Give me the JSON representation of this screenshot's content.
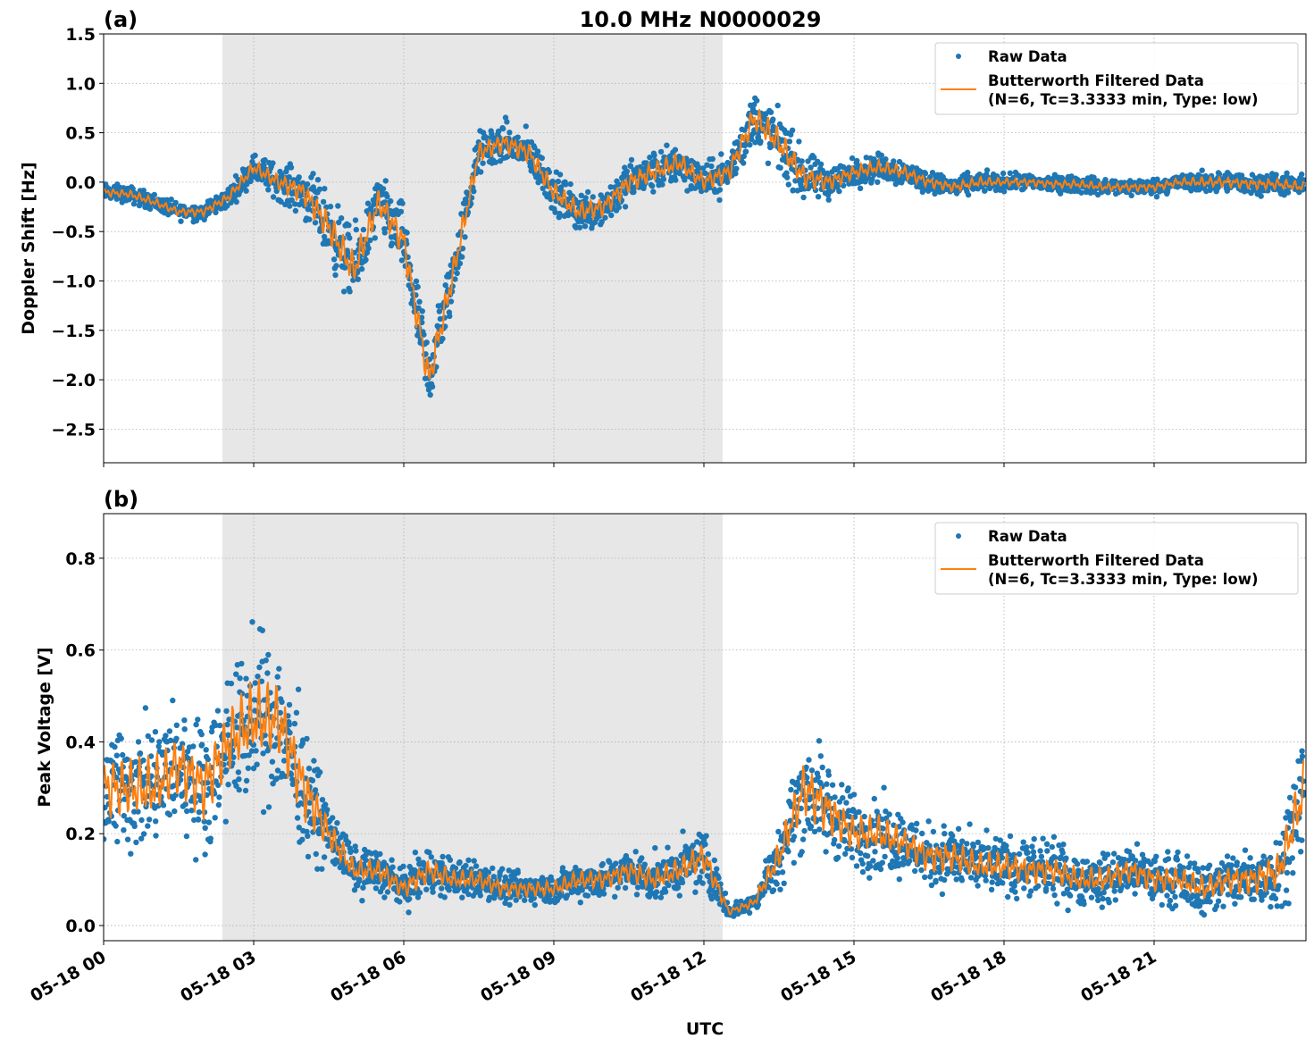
{
  "title": "10.0 MHz N0000029",
  "xlabel": "UTC",
  "colors": {
    "raw": "#1f77b4",
    "filtered": "#ff7f0e",
    "shade": "#e7e7e7",
    "grid": "#b0b0b0"
  },
  "chart_data": [
    {
      "type": "scatter+line",
      "panel_label": "(a)",
      "ylabel": "Doppler Shift [Hz]",
      "xlim_hours": [
        0,
        24
      ],
      "ylim": [
        -2.84,
        1.5
      ],
      "x_ticks": [
        "05-18 00",
        "05-18 03",
        "05-18 06",
        "05-18 09",
        "05-18 12",
        "05-18 15",
        "05-18 18",
        "05-18 21"
      ],
      "x_tick_hours": [
        0,
        3,
        6,
        9,
        12,
        15,
        18,
        21
      ],
      "y_ticks": [
        1.5,
        1.0,
        0.5,
        0.0,
        -0.5,
        -1.0,
        -1.5,
        -2.0,
        -2.5
      ],
      "y_tick_labels": [
        "1.5",
        "1.0",
        "0.5",
        "0.0",
        "−0.5",
        "−1.0",
        "−1.5",
        "−2.0",
        "−2.5"
      ],
      "grid": true,
      "shaded_interval_hours": [
        2.375,
        12.375
      ],
      "legend": {
        "position": "top-right",
        "entries": [
          "Raw Data",
          "Butterworth Filtered Data",
          "(N=6, Tc=3.3333 min, Type: low)"
        ]
      },
      "sample_hours_step": 0.5,
      "filtered": [
        -0.1,
        -0.12,
        -0.2,
        -0.3,
        -0.3,
        -0.15,
        0.15,
        0.0,
        -0.1,
        -0.45,
        -0.9,
        -0.2,
        -0.6,
        -2.0,
        -0.9,
        0.3,
        0.4,
        0.3,
        -0.1,
        -0.3,
        -0.25,
        0.0,
        0.1,
        0.2,
        0.0,
        0.1,
        0.65,
        0.4,
        0.05,
        0.0,
        0.1,
        0.15,
        0.1,
        0.0,
        -0.05,
        0.0,
        0.0,
        0.0,
        -0.02,
        -0.02,
        -0.05,
        -0.05,
        -0.05,
        0.0,
        0.0,
        0.0,
        -0.02,
        -0.02,
        -0.05
      ],
      "raw_spread": [
        0.12,
        0.12,
        0.12,
        0.12,
        0.12,
        0.15,
        0.2,
        0.25,
        0.35,
        0.5,
        0.55,
        0.4,
        0.5,
        0.5,
        0.45,
        0.3,
        0.3,
        0.3,
        0.3,
        0.3,
        0.3,
        0.3,
        0.3,
        0.3,
        0.25,
        0.3,
        0.4,
        0.45,
        0.35,
        0.25,
        0.2,
        0.2,
        0.2,
        0.15,
        0.15,
        0.15,
        0.12,
        0.12,
        0.12,
        0.12,
        0.12,
        0.12,
        0.12,
        0.12,
        0.15,
        0.15,
        0.15,
        0.15,
        0.15
      ]
    },
    {
      "type": "scatter+line",
      "panel_label": "(b)",
      "ylabel": "Peak Voltage [V]",
      "xlim_hours": [
        0,
        24
      ],
      "ylim": [
        -0.033,
        0.897
      ],
      "x_ticks": [
        "05-18 00",
        "05-18 03",
        "05-18 06",
        "05-18 09",
        "05-18 12",
        "05-18 15",
        "05-18 18",
        "05-18 21"
      ],
      "x_tick_hours": [
        0,
        3,
        6,
        9,
        12,
        15,
        18,
        21
      ],
      "y_ticks": [
        0.8,
        0.6,
        0.4,
        0.2,
        0.0
      ],
      "y_tick_labels": [
        "0.8",
        "0.6",
        "0.4",
        "0.2",
        "0.0"
      ],
      "grid": true,
      "shaded_interval_hours": [
        2.375,
        12.375
      ],
      "legend": {
        "position": "top-right",
        "entries": [
          "Raw Data",
          "Butterworth Filtered Data",
          "(N=6, Tc=3.3333 min, Type: low)"
        ]
      },
      "sample_hours_step": 0.5,
      "filtered": [
        0.3,
        0.3,
        0.3,
        0.35,
        0.3,
        0.4,
        0.45,
        0.45,
        0.3,
        0.2,
        0.12,
        0.12,
        0.08,
        0.12,
        0.1,
        0.1,
        0.08,
        0.08,
        0.08,
        0.1,
        0.1,
        0.12,
        0.1,
        0.12,
        0.15,
        0.03,
        0.05,
        0.15,
        0.3,
        0.25,
        0.2,
        0.2,
        0.18,
        0.15,
        0.15,
        0.13,
        0.13,
        0.12,
        0.12,
        0.1,
        0.1,
        0.12,
        0.1,
        0.1,
        0.08,
        0.1,
        0.1,
        0.12,
        0.3
      ],
      "raw_spread": [
        0.2,
        0.2,
        0.2,
        0.2,
        0.2,
        0.22,
        0.25,
        0.25,
        0.2,
        0.1,
        0.07,
        0.07,
        0.06,
        0.08,
        0.06,
        0.06,
        0.05,
        0.05,
        0.05,
        0.06,
        0.06,
        0.07,
        0.07,
        0.08,
        0.1,
        0.02,
        0.03,
        0.1,
        0.18,
        0.15,
        0.12,
        0.12,
        0.1,
        0.1,
        0.1,
        0.09,
        0.09,
        0.09,
        0.09,
        0.08,
        0.08,
        0.08,
        0.08,
        0.08,
        0.08,
        0.09,
        0.1,
        0.12,
        0.2
      ]
    }
  ]
}
